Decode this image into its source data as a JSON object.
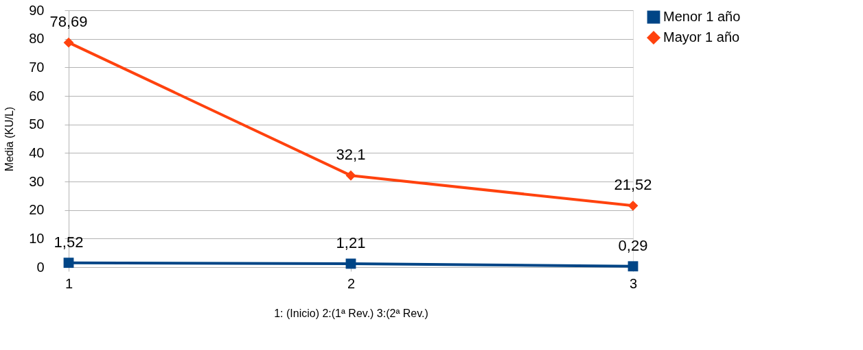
{
  "chart_data": {
    "type": "line",
    "xlabel": "1: (Inicio)  2:(1ª Rev.)   3:(2ª Rev.)",
    "ylabel": "Media (KU/L)",
    "x": [
      1,
      2,
      3
    ],
    "series": [
      {
        "name": "Menor 1 año",
        "color": "#004586",
        "marker": "square",
        "values": [
          1.52,
          1.21,
          0.29
        ],
        "value_labels": [
          "1,52",
          "1,21",
          "0,29"
        ]
      },
      {
        "name": "Mayor 1 año",
        "color": "#ff420e",
        "marker": "diamond",
        "values": [
          78.69,
          32.1,
          21.52
        ],
        "value_labels": [
          "78,69",
          "32,1",
          "21,52"
        ]
      }
    ],
    "xlim": [
      1,
      3
    ],
    "xticks": [
      1,
      2,
      3
    ],
    "ylim": [
      0,
      90
    ],
    "yticks": [
      0,
      10,
      20,
      30,
      40,
      50,
      60,
      70,
      80,
      90
    ],
    "grid": "y",
    "legend": "right",
    "line_style": "solid"
  }
}
